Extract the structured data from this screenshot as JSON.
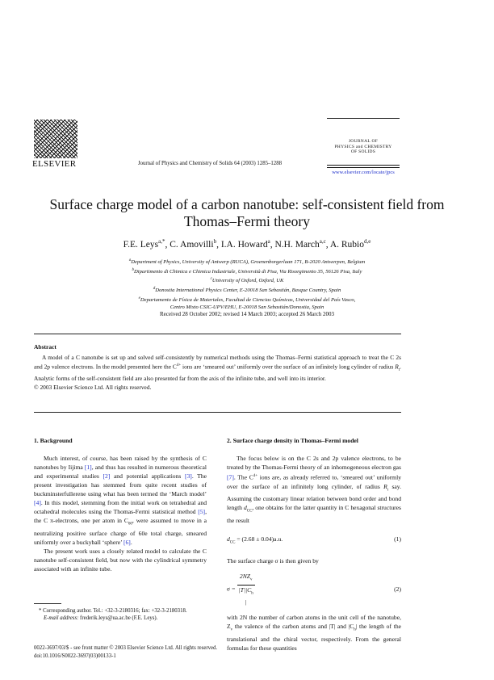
{
  "header": {
    "publisher": "ELSEVIER",
    "journal_citation": "Journal of Physics and Chemistry of Solids 64 (2003) 1285–1288",
    "journal_box": [
      "JOURNAL OF",
      "PHYSICS and CHEMISTRY",
      "OF SOLIDS"
    ],
    "url": "www.elsevier.com/locate/jpcs"
  },
  "title": "Surface charge model of a carbon nanotube: self-consistent field from Thomas–Fermi theory",
  "authors": [
    {
      "name": "F.E. Leys",
      "aff": "a,*"
    },
    {
      "name": "C. Amovilli",
      "aff": "b"
    },
    {
      "name": "I.A. Howard",
      "aff": "a"
    },
    {
      "name": "N.H. March",
      "aff": "a,c"
    },
    {
      "name": "A. Rubio",
      "aff": "d,e"
    }
  ],
  "affiliations": [
    {
      "mark": "a",
      "text": "Department of Physics, University of Antwerp (RUCA), Groenenborgerlaan 171, B-2020 Antwerpen, Belgium"
    },
    {
      "mark": "b",
      "text": "Dipartimento di Chimica e Chimica Industriale, Università di Pisa, Via Risorgimento 35, 56126 Pisa, Italy"
    },
    {
      "mark": "c",
      "text": "University of Oxford, Oxford, UK"
    },
    {
      "mark": "d",
      "text": "Donostia International Physics Center, E-20018 San Sebastián, Basque Country, Spain"
    },
    {
      "mark": "e",
      "text": "Departamento de Física de Materiales, Facultad de Ciencias Químicas, Universidad del País Vasco,"
    },
    {
      "mark": "",
      "text": "Centro Mixto CSIC-UPV/EHU, E-20018 San Sebastián/Donostia, Spain"
    }
  ],
  "received": "Received 28 October 2002; revised 14 March 2003; accepted 26 March 2003",
  "abstract": {
    "heading": "Abstract",
    "text_a": "A model of a C nanotube is set up and solved self-consistently by numerical methods using the Thomas–Fermi statistical approach to treat the C 2s and 2p valence electrons. In the model presented here the C",
    "sup": "4+",
    "text_b": " ions are ‘smeared out’ uniformly over the surface of an infinitely long cylinder of radius ",
    "radius": "R",
    "radius_sub": "t",
    "text_c": ". Analytic forms of the self-consistent field are also presented far from the axis of the infinite tube, and well into its interior.",
    "copyright": "© 2003 Elsevier Science Ltd. All rights reserved."
  },
  "section1": {
    "heading": "1. Background",
    "p1": [
      "Much interest, of course, has been raised by the synthesis of C nanotubes by Iijima ",
      "[1]",
      ", and thus has resulted in numerous theoretical and experimental studies ",
      "[2]",
      " and potential applications ",
      "[3]",
      ". The present investigation has stemmed from quite recent studies of buckminsterfullerene using what has been termed the ‘March model’ ",
      "[4]",
      ". In this model, stemming from the initial work on tetrahedral and octahedral molecules using the Thomas-Fermi statistical method ",
      "[5]",
      ", the C π-electrons, one per atom in C",
      "60",
      ", were assumed to move in a neutralizing positive surface charge of 60e total charge, smeared uniformly over a buckyball ‘sphere’ ",
      "[6]",
      "."
    ],
    "p2": "The present work uses a closely related model to calculate the C nanotube self-consistent field, but now with the cylindrical symmetry associated with an infinite tube."
  },
  "footnote": {
    "corresponding": "* Corresponding author. Tel.: +32-3-2180316; fax: +32-3-2180318.",
    "email_label": "E-mail address:",
    "email": " frederik.leys@ua.ac.be (F.E. Leys)."
  },
  "bottom": {
    "issn": "0022-3697/03/$ - see front matter © 2003 Elsevier Science Ltd. All rights reserved.",
    "doi": "doi:10.1016/S0022-3697(03)00133-1"
  },
  "section2": {
    "heading": "2. Surface charge density in Thomas–Fermi model",
    "p1": [
      "The focus below is on the C 2s and 2p valence electrons, to be treated by the Thomas-Fermi theory of an inhomogeneous electron gas ",
      "[7]",
      ". The C",
      "4+",
      " ions are, as already referred to, ‘smeared out’ uniformly over the surface of an infinitely long cylinder, of radius ",
      "R",
      "t",
      " say. Assuming the customary linear relation between bond order and bond length ",
      "d",
      "CC",
      ", one obtains for the latter quantity in C hexagonal structures the result"
    ],
    "eq1": {
      "lhs": "d",
      "lhs_sub": "CC",
      "rhs": " = (2.68 ± 0.04)a.u.",
      "number": "(1)"
    },
    "p2": "The surface charge σ is then given by",
    "eq2": {
      "lhs": "σ = ",
      "num": "2NZ",
      "num_sub": "v",
      "den": "|T||C",
      "den_sub": "h",
      "den_end": "|",
      "number": "(2)"
    },
    "p3": "with 2N the number of carbon atoms in the unit cell of the nanotube, Z",
    "p3_sub": "v",
    "p3b": " the valence of the carbon atoms and |T| and |C",
    "p3b_sub": "h",
    "p3c": "| the length of the translational and the chiral vector, respectively. From the general formulas for these quantities"
  },
  "colors": {
    "link": "#2233cc",
    "text": "#111111"
  }
}
